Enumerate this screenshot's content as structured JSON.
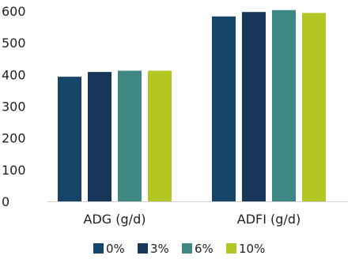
{
  "chart_data": {
    "type": "bar",
    "categories": [
      "ADG (g/d)",
      "ADFI (g/d)"
    ],
    "series": [
      {
        "name": "0%",
        "color": "#16456a",
        "values": [
          393,
          583
        ]
      },
      {
        "name": "3%",
        "color": "#17375a",
        "values": [
          408,
          597
        ]
      },
      {
        "name": "6%",
        "color": "#3e8783",
        "values": [
          412,
          603
        ]
      },
      {
        "name": "10%",
        "color": "#b3c623",
        "values": [
          412,
          594
        ]
      }
    ],
    "ylim": [
      0,
      600
    ],
    "yticks": [
      0,
      100,
      200,
      300,
      400,
      500,
      600
    ],
    "grid": false,
    "legend_position": "bottom"
  }
}
